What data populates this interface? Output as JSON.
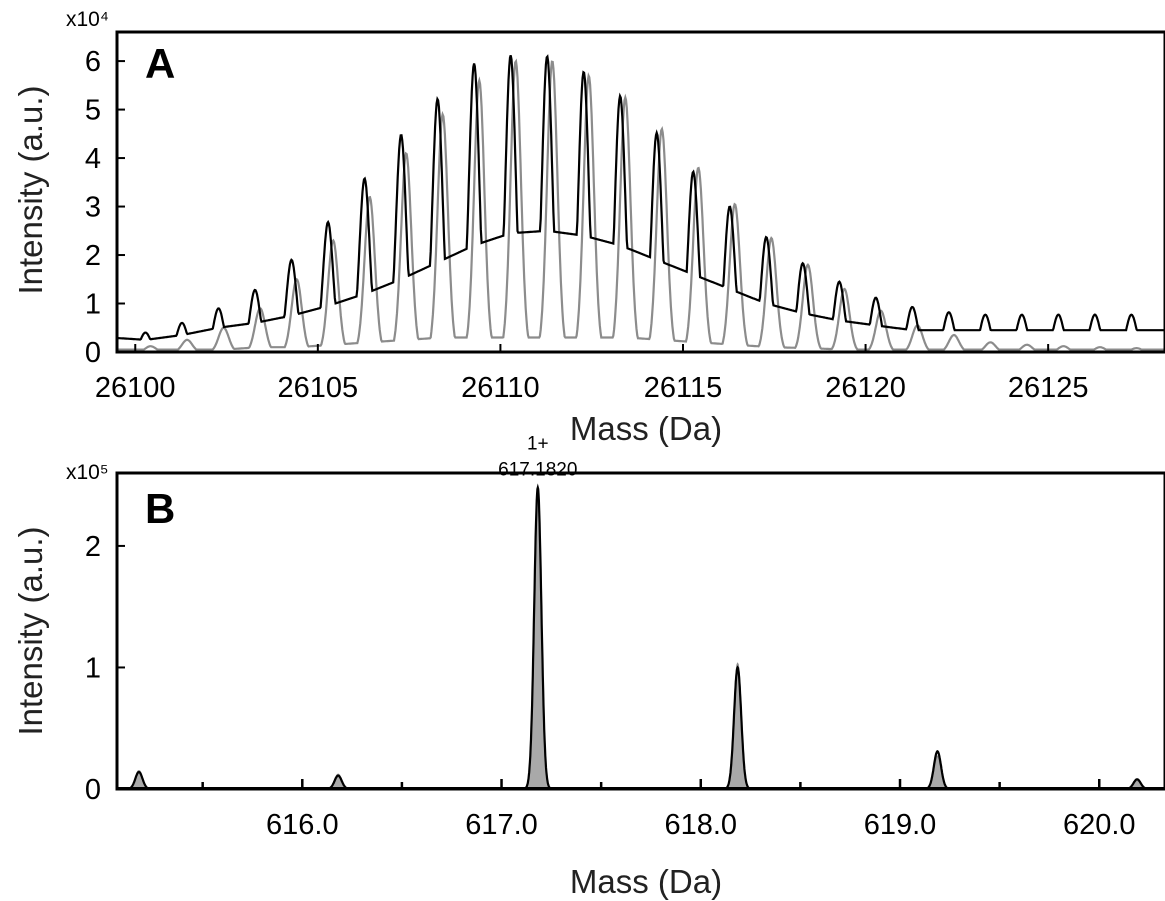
{
  "chart_data": [
    {
      "type": "line",
      "panel_label": "A",
      "xlabel": "Mass (Da)",
      "ylabel": "Intensity (a.u.)",
      "y_exponent": "x10⁴",
      "xlim": [
        26099.5,
        26128.2
      ],
      "ylim": [
        0,
        6.6
      ],
      "x_ticks": [
        26100,
        26105,
        26110,
        26115,
        26120,
        26125
      ],
      "y_ticks": [
        0,
        1,
        2,
        3,
        4,
        5,
        6
      ],
      "grid": false,
      "series": [
        {
          "color": "#000000",
          "peak_x": [
            26099.27,
            26100.28,
            26101.28,
            26102.28,
            26103.28,
            26104.28,
            26105.28,
            26106.28,
            26107.28,
            26108.28,
            26109.28,
            26110.28,
            26111.28,
            26112.28,
            26113.28,
            26114.28,
            26115.28,
            26116.28,
            26117.28,
            26118.28,
            26119.28,
            26120.28,
            26121.28,
            26122.28,
            26123.28,
            26124.28,
            26125.28,
            26126.28,
            26127.28
          ],
          "peak_y": [
            0.3,
            0.4,
            0.6,
            0.9,
            1.28,
            1.9,
            2.68,
            3.58,
            4.48,
            5.22,
            5.95,
            6.12,
            6.1,
            5.78,
            5.28,
            4.52,
            3.72,
            3.0,
            2.37,
            1.83,
            1.45,
            1.12,
            0.93,
            0.82,
            0.77,
            0.77,
            0.77,
            0.77,
            0.77
          ],
          "valley_y": [
            0.3,
            0.25,
            0.35,
            0.5,
            0.6,
            0.75,
            0.95,
            1.2,
            1.5,
            1.85,
            2.2,
            2.45,
            2.5,
            2.4,
            2.2,
            1.9,
            1.6,
            1.3,
            1.0,
            0.8,
            0.65,
            0.55,
            0.45,
            0.45,
            0.45,
            0.45,
            0.45,
            0.45,
            0.45
          ]
        },
        {
          "color": "#8c8c8c",
          "peak_x": [
            26099.42,
            26100.42,
            26101.42,
            26102.42,
            26103.42,
            26104.42,
            26105.42,
            26106.42,
            26107.42,
            26108.42,
            26109.42,
            26110.42,
            26111.42,
            26112.42,
            26113.42,
            26114.42,
            26115.42,
            26116.42,
            26117.42,
            26118.42,
            26119.42,
            26120.42,
            26121.42,
            26122.42,
            26123.42,
            26124.42,
            26125.42,
            26126.42,
            26127.42
          ],
          "peak_y": [
            0.0,
            0.12,
            0.25,
            0.5,
            0.9,
            1.5,
            2.3,
            3.2,
            4.1,
            4.9,
            5.6,
            6.0,
            6.0,
            5.7,
            5.25,
            4.6,
            3.8,
            3.05,
            2.35,
            1.8,
            1.3,
            0.85,
            0.55,
            0.35,
            0.2,
            0.15,
            0.12,
            0.1,
            0.08
          ],
          "valley_y": [
            0.05,
            0.05,
            0.05,
            0.05,
            0.1,
            0.1,
            0.15,
            0.2,
            0.25,
            0.3,
            0.3,
            0.3,
            0.3,
            0.3,
            0.3,
            0.25,
            0.2,
            0.15,
            0.1,
            0.08,
            0.05,
            0.05,
            0.05,
            0.05,
            0.05,
            0.05,
            0.05,
            0.05,
            0.05
          ]
        }
      ]
    },
    {
      "type": "line",
      "panel_label": "B",
      "xlabel": "Mass (Da)",
      "ylabel": "Intensity (a.u.)",
      "y_exponent": "x10⁵",
      "xlim": [
        615.07,
        620.33
      ],
      "ylim": [
        0,
        2.6
      ],
      "x_ticks": [
        616.0,
        617.0,
        618.0,
        619.0,
        620.0
      ],
      "x_tick_labels": [
        "616.0",
        "617.0",
        "618.0",
        "619.0",
        "620.0"
      ],
      "x_minor_ticks": [
        615.5,
        616.5,
        617.5,
        618.5,
        619.5
      ],
      "y_ticks": [
        0,
        1,
        2
      ],
      "grid": false,
      "annotation": {
        "line1": "1+",
        "line2": "617.1820",
        "x": 617.182,
        "y": 2.48
      },
      "series": [
        {
          "color": "#000000",
          "peaks_x": [
            615.18,
            616.18,
            617.182,
            618.185,
            619.188,
            620.19
          ],
          "peaks_y": [
            0.14,
            0.11,
            2.48,
            1.0,
            0.31,
            0.08
          ]
        },
        {
          "color": "#8c8c8c",
          "fill": "#a9a9a9",
          "peaks_x": [
            615.18,
            616.18,
            617.182,
            618.185,
            619.188,
            620.19
          ],
          "peaks_y": [
            0.15,
            0.12,
            2.42,
            1.03,
            0.27,
            0.07
          ]
        }
      ]
    }
  ]
}
